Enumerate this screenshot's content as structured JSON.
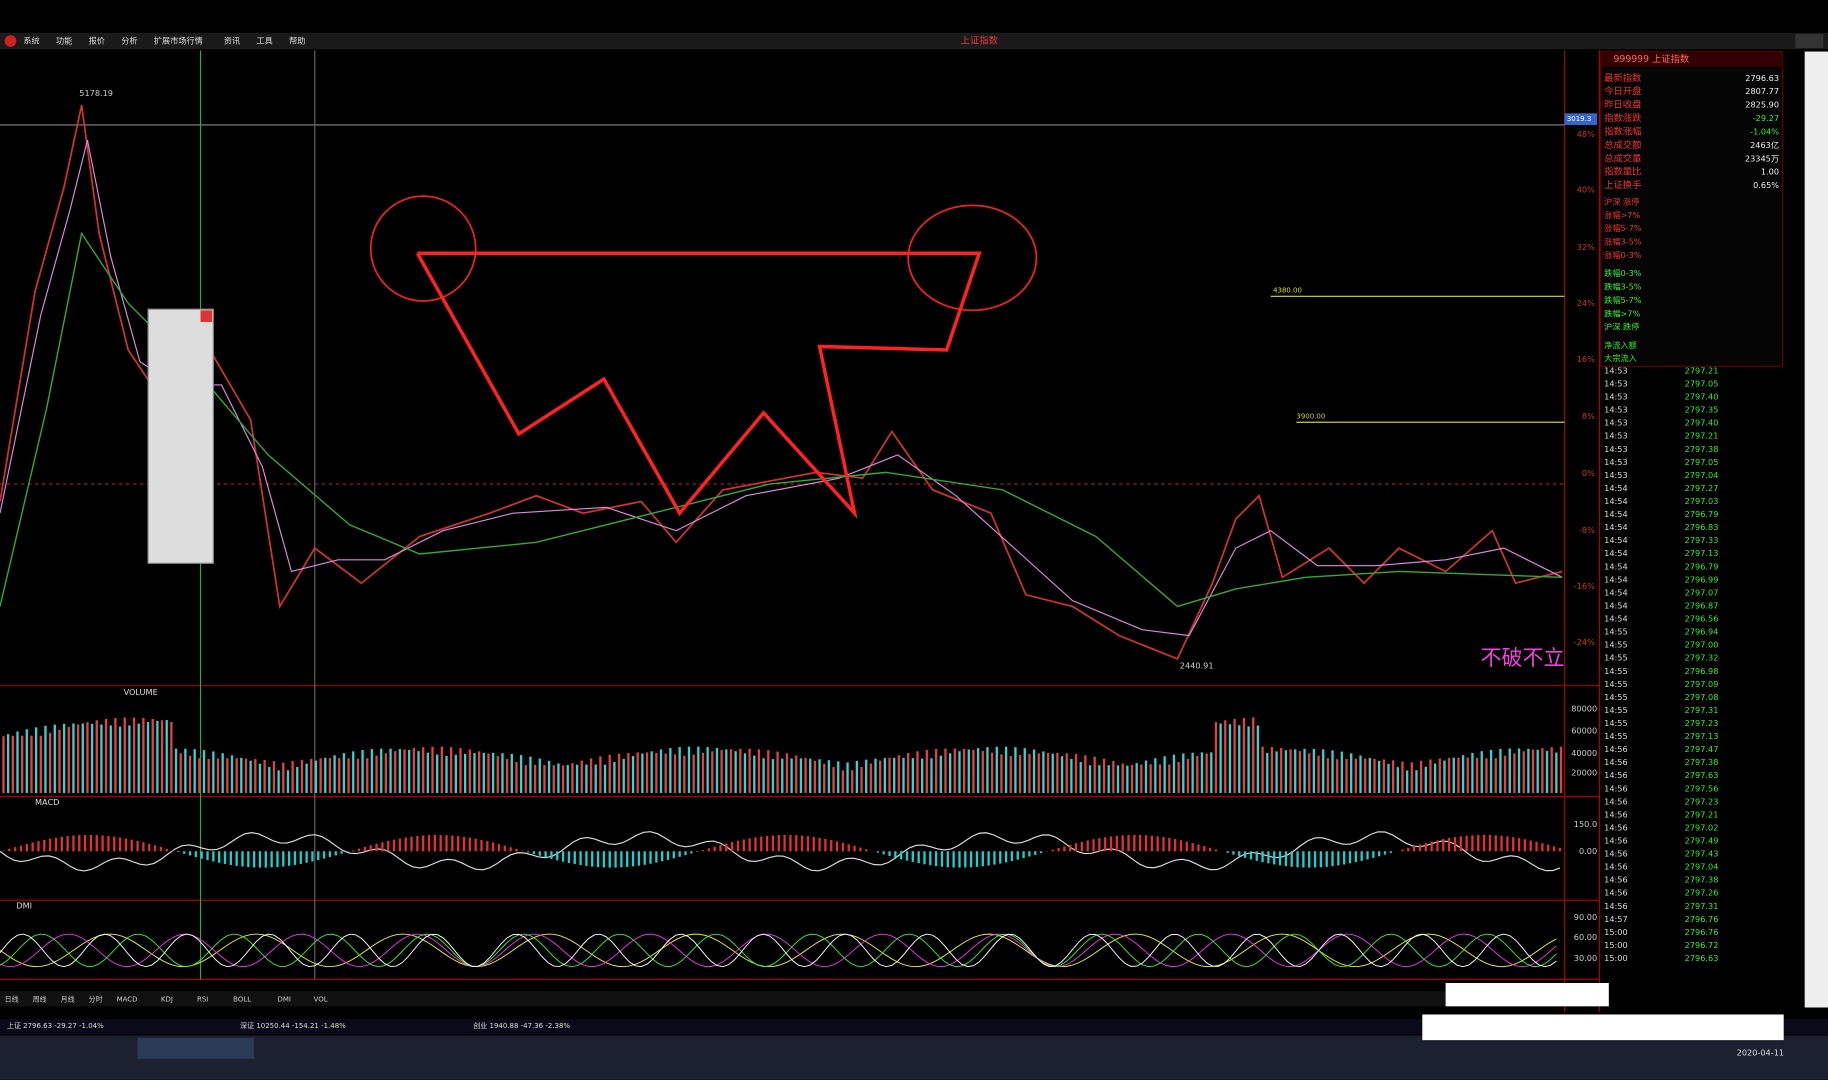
{
  "window_title": "上证指数",
  "menu": [
    "系统",
    "功能",
    "报价",
    "分析",
    "扩展市场行情",
    "资讯",
    "工具",
    "帮助"
  ],
  "chart": {
    "high_label": "5178.19",
    "low_label": "2440.91",
    "level_lines": [
      "4380.00",
      "3900.00"
    ],
    "last_label": "3019.3",
    "annotation": "不破不立",
    "pct_axis": [
      "48%",
      "40%",
      "32%",
      "24%",
      "16%",
      "8%",
      "0%",
      "-8%",
      "-16%",
      "-24%"
    ]
  },
  "volume_panel": {
    "title": "VOLUME",
    "axis": [
      "80000",
      "60000",
      "40000",
      "20000"
    ]
  },
  "macd_panel": {
    "title": "MACD",
    "axis": [
      "150.0",
      "0.00"
    ]
  },
  "dmi_panel": {
    "title": "DMI",
    "axis": [
      "90.00",
      "60.00",
      "30.00"
    ]
  },
  "quote": {
    "code": "999999 上证指数",
    "labels": [
      "最新指数",
      "今日开盘",
      "昨日收盘",
      "指数涨跌",
      "指数涨幅",
      "总成交额",
      "总成交量",
      "指数量比",
      "上证换手"
    ],
    "values": [
      "2796.63",
      "2807.77",
      "2825.90",
      "-29.27",
      "-1.04%",
      "2463亿",
      "23345万",
      "1.00",
      "0.65%"
    ],
    "breadth": [
      "沪深 涨停",
      "涨幅>7%",
      "涨幅5-7%",
      "涨幅3-5%",
      "涨幅0-3%",
      "跌幅0-3%",
      "跌幅3-5%",
      "跌幅5-7%",
      "跌幅>7%",
      "沪深 跌停",
      "净流入额",
      "大宗流入"
    ]
  },
  "ticks": {
    "times": [
      "14:53",
      "14:53",
      "14:53",
      "14:53",
      "14:53",
      "14:53",
      "14:53",
      "14:53",
      "14:53",
      "14:54",
      "14:54",
      "14:54",
      "14:54",
      "14:54",
      "14:54",
      "14:54",
      "14:54",
      "14:54",
      "14:54",
      "14:54",
      "14:55",
      "14:55",
      "14:55",
      "14:55",
      "14:55",
      "14:55",
      "14:55",
      "14:55",
      "14:55",
      "14:56",
      "14:56",
      "14:56",
      "14:56",
      "14:56",
      "14:56",
      "14:56",
      "14:56",
      "14:56",
      "14:56",
      "14:56",
      "14:56",
      "14:56",
      "14:57",
      "15:00",
      "15:00",
      "15:00"
    ],
    "prices": [
      "2797.21",
      "2797.05",
      "2797.40",
      "2797.35",
      "2797.40",
      "2797.21",
      "2797.38",
      "2797.05",
      "2797.04",
      "2797.27",
      "2797.03",
      "2796.79",
      "2796.83",
      "2797.33",
      "2797.13",
      "2796.79",
      "2796.99",
      "2797.07",
      "2796.87",
      "2796.56",
      "2796.94",
      "2797.00",
      "2797.32",
      "2796.98",
      "2797.09",
      "2797.08",
      "2797.31",
      "2797.23",
      "2797.13",
      "2797.47",
      "2797.38",
      "2797.63",
      "2797.56",
      "2797.23",
      "2797.21",
      "2797.02",
      "2797.49",
      "2797.43",
      "2797.04",
      "2797.38",
      "2797.26",
      "2797.31",
      "2796.76",
      "2796.76",
      "2796.72",
      "2796.63"
    ]
  },
  "tabs": [
    "日线",
    "周线",
    "月线",
    "分时",
    "MACD",
    "KDJ",
    "RSI",
    "BOLL",
    "DMI",
    "VOL"
  ],
  "status": [
    "上证 2796.63 -29.27 -1.04%",
    "深证 10250.44 -154.21 -1.48%",
    "创业 1940.88 -47.36 -2.38%"
  ],
  "taskbar_date": "2020-04-11"
}
